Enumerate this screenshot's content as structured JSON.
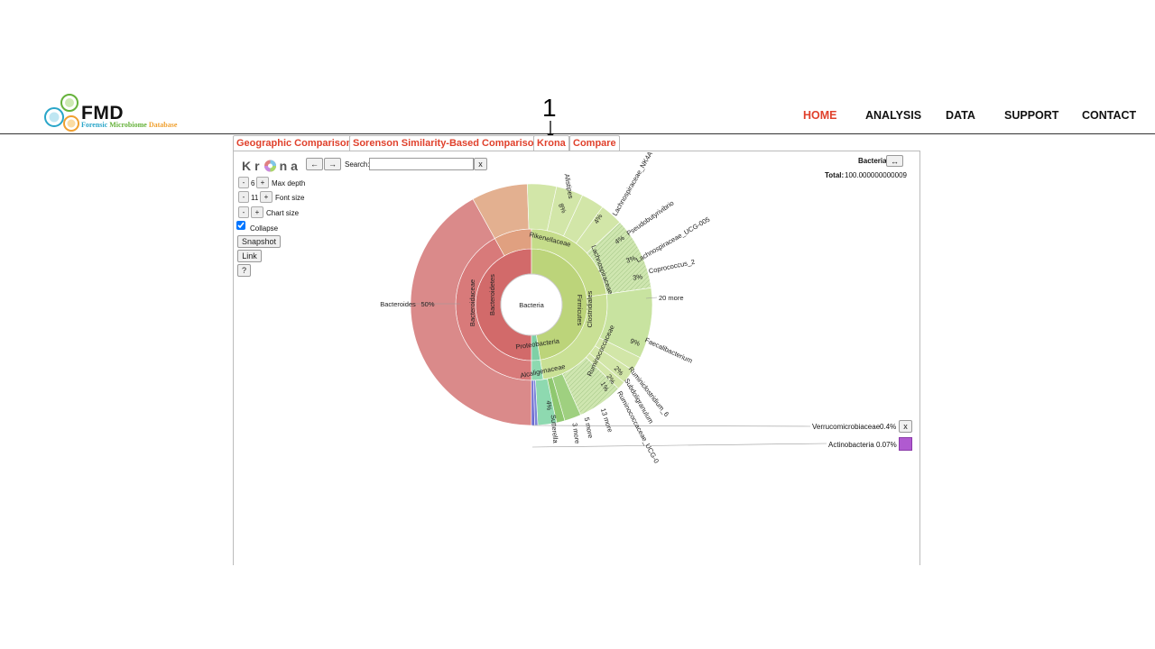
{
  "header": {
    "logo_title": "FMD",
    "logo_subtitle_words": [
      "Forensic",
      "Microbiome",
      "Database"
    ],
    "colors": {
      "subtitle_1": "#2aa6c9",
      "subtitle_2": "#66b23b",
      "subtitle_3": "#f0a030",
      "accent": "#e0412c"
    },
    "nav": [
      "HOME",
      "ANALYSIS",
      "DATA",
      "SUPPORT",
      "CONTACT"
    ],
    "nav_active": "HOME"
  },
  "annotation": {
    "step_number": "1"
  },
  "tabs": [
    "Geographic Comparison",
    "Sorenson Similarity-Based Comparison",
    "Krona",
    "Compare"
  ],
  "krona": {
    "logo_letters": [
      "K",
      "r",
      "n",
      "a"
    ],
    "back_label": "←",
    "forward_label": "→",
    "search_label": "Search:",
    "search_value": "",
    "search_clear": "x",
    "max_depth": {
      "minus": "-",
      "value": "6",
      "plus": "+",
      "label": "Max depth"
    },
    "font_size": {
      "minus": "-",
      "value": "11",
      "plus": "+",
      "label": "Font size"
    },
    "chart_size": {
      "minus": "-",
      "plus": "+",
      "label": "Chart size"
    },
    "collapse_label": "Collapse",
    "collapse_checked": true,
    "snapshot_label": "Snapshot",
    "link_label": "Link",
    "help_label": "?",
    "focus_name": "Bacteria",
    "focus_toggle": "↔",
    "total_label": "Total:",
    "total_value": "100.000000000009",
    "chart": {
      "center_label": "Bacteria",
      "ring1": [
        "Bacteroidetes",
        "Firmicutes",
        "Proteobacteria"
      ],
      "ring2": [
        "Bacteroidaceae",
        "Rikenellaceae",
        "Lachnospiraceae",
        "Clostridiales",
        "Ruminococcaceae",
        "Alcaligenaceae"
      ],
      "outer_pct": [
        "50%",
        "8%",
        "4%",
        "4%",
        "3%",
        "3%",
        "9%",
        "2%",
        "2%",
        "1%",
        "4%"
      ],
      "outer_names": [
        "Bacteroides",
        "Alistipes",
        "Lachnospiraceae_NK4A",
        "Pseudobutyrivibrio",
        "Lachnospiraceae_UCG-005",
        "Coprococcus_2",
        "20 more",
        "Faecalibacterium",
        "Ruminiclostridium_6",
        "Subdoligranulum",
        "Ruminococcaceae_UCG-0",
        "13 more",
        "5 more",
        "3 more",
        "Sutterella"
      ],
      "legend": [
        {
          "name": "Verrucomicrobiaceae",
          "pct": "0.4%",
          "button": "x"
        },
        {
          "name": "Actinobacteria",
          "pct": "0.07%",
          "swatch": "#b05ad0"
        }
      ]
    }
  }
}
